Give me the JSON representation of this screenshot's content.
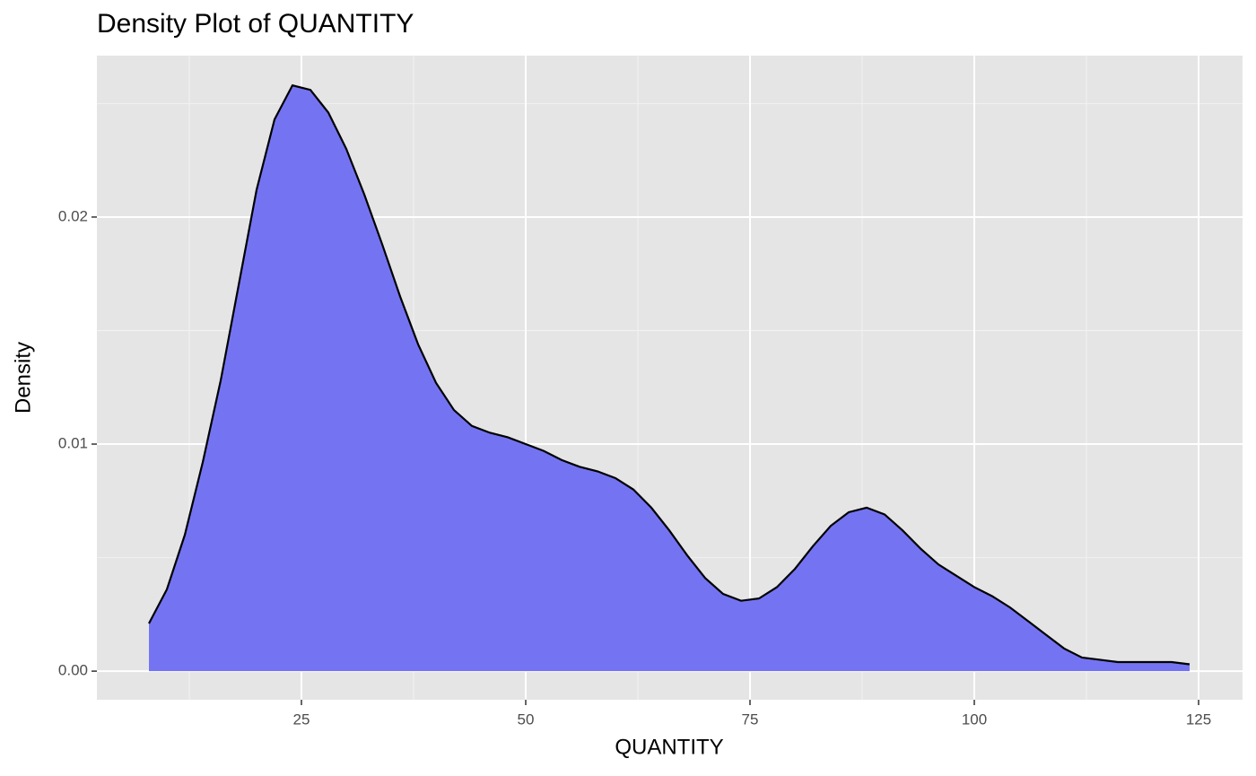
{
  "chart_data": {
    "type": "area",
    "title": "Density Plot of QUANTITY",
    "x_label": "QUANTITY",
    "y_label": "Density",
    "x": [
      8,
      10,
      12,
      14,
      16,
      18,
      20,
      22,
      24,
      26,
      28,
      30,
      32,
      34,
      36,
      38,
      40,
      42,
      44,
      46,
      48,
      50,
      52,
      54,
      56,
      58,
      60,
      62,
      64,
      66,
      68,
      70,
      72,
      74,
      76,
      78,
      80,
      82,
      84,
      86,
      88,
      90,
      92,
      94,
      96,
      98,
      100,
      102,
      104,
      106,
      108,
      110,
      112,
      114,
      116,
      118,
      120,
      122,
      124
    ],
    "values": [
      0.0021,
      0.0036,
      0.006,
      0.0092,
      0.0128,
      0.017,
      0.0212,
      0.0243,
      0.0258,
      0.0256,
      0.0246,
      0.023,
      0.021,
      0.0188,
      0.0165,
      0.0144,
      0.0127,
      0.0115,
      0.0108,
      0.0105,
      0.0103,
      0.01,
      0.0097,
      0.0093,
      0.009,
      0.0088,
      0.0085,
      0.008,
      0.0072,
      0.0062,
      0.0051,
      0.0041,
      0.0034,
      0.0031,
      0.0032,
      0.0037,
      0.0045,
      0.0055,
      0.0064,
      0.007,
      0.0072,
      0.0069,
      0.0062,
      0.0054,
      0.0047,
      0.0042,
      0.0037,
      0.0033,
      0.0028,
      0.0022,
      0.0016,
      0.001,
      0.0006,
      0.0005,
      0.0004,
      0.0004,
      0.0004,
      0.0004,
      0.0003
    ],
    "color": "#7474f3",
    "line_color": "#000000",
    "xlim": [
      2.2,
      129.9
    ],
    "ylim": [
      -0.00126,
      0.02711
    ],
    "xticks": [
      25,
      50,
      75,
      100,
      125
    ],
    "yticks": [
      {
        "value": 0,
        "label": "0.00"
      },
      0.01,
      0.02
    ],
    "x_minor_grid": [
      12.5,
      37.5,
      62.5,
      87.5,
      112.5
    ],
    "y_minor_grid": [
      0.005,
      0.015,
      0.025
    ],
    "grid": true
  }
}
